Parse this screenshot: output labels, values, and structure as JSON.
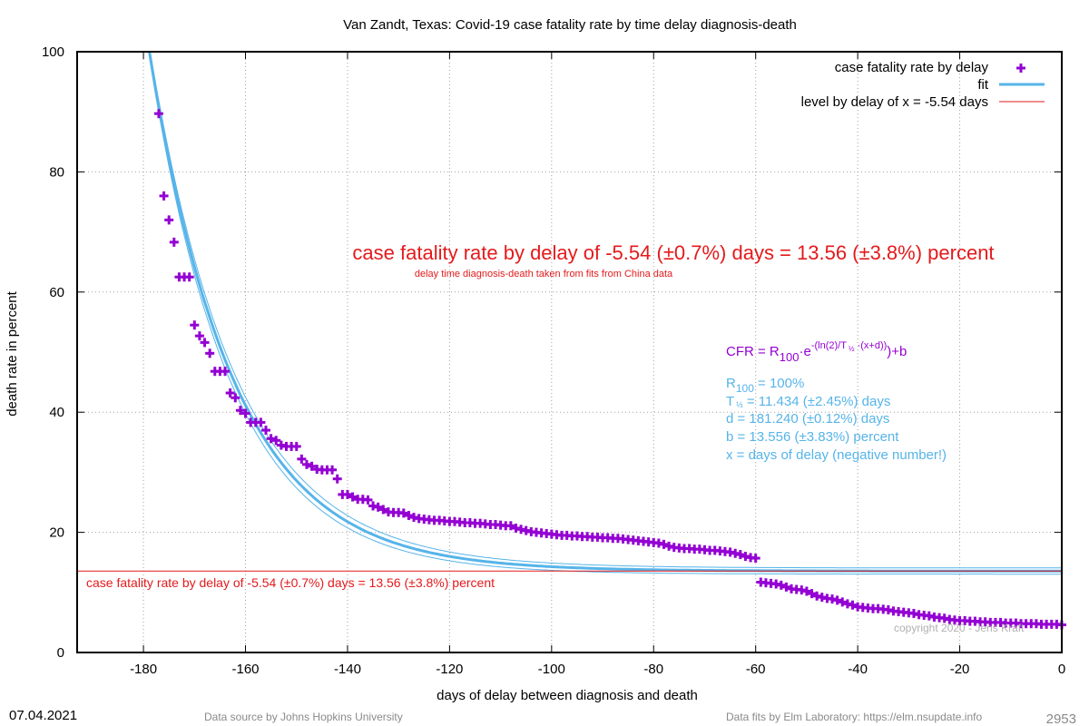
{
  "chart_data": {
    "type": "scatter",
    "title": "Van Zandt,  Texas: Covid-19 case fatality rate by time delay diagnosis-death",
    "xlabel": "days of delay between diagnosis and death",
    "ylabel": "death rate in percent",
    "xlim": [
      -193,
      0
    ],
    "ylim": [
      0,
      100
    ],
    "xticks": [
      -180,
      -160,
      -140,
      -120,
      -100,
      -80,
      -60,
      -40,
      -20,
      0
    ],
    "yticks": [
      0,
      20,
      40,
      60,
      80,
      100
    ],
    "x_tick_labels": [
      "-180",
      "-160",
      "-140",
      "-120",
      "-100",
      "-80",
      "-60",
      "-40",
      "-20",
      "0"
    ],
    "y_tick_labels": [
      "0",
      "20",
      "40",
      "60",
      "80",
      "100"
    ],
    "grid": true,
    "legend_position": "top-right",
    "legend": [
      {
        "label": "case fatality rate by delay",
        "kind": "marker",
        "color": "#9400d3"
      },
      {
        "label": "fit",
        "kind": "line",
        "color": "#56b4e9"
      },
      {
        "label": "level by delay of x = -5.54 days",
        "kind": "line",
        "color": "#e41a1c"
      }
    ],
    "series": [
      {
        "name": "case fatality rate by delay",
        "color": "#9400d3",
        "points": [
          [
            -177,
            89.7
          ],
          [
            -176,
            76.0
          ],
          [
            -175,
            72.0
          ],
          [
            -174,
            68.3
          ],
          [
            -173,
            62.5
          ],
          [
            -172,
            62.5
          ],
          [
            -171,
            62.5
          ],
          [
            -170,
            54.5
          ],
          [
            -169,
            52.7
          ],
          [
            -168,
            51.6
          ],
          [
            -167,
            49.8
          ],
          [
            -166,
            46.8
          ],
          [
            -165,
            46.8
          ],
          [
            -164,
            46.8
          ],
          [
            -163,
            43.2
          ],
          [
            -162,
            42.4
          ],
          [
            -161,
            40.3
          ],
          [
            -160,
            39.8
          ],
          [
            -159,
            38.3
          ],
          [
            -158,
            38.3
          ],
          [
            -157,
            38.3
          ],
          [
            -156,
            37.0
          ],
          [
            -155,
            35.6
          ],
          [
            -154,
            35.3
          ],
          [
            -153,
            34.5
          ],
          [
            -152,
            34.3
          ],
          [
            -151,
            34.3
          ],
          [
            -150,
            34.3
          ],
          [
            -149,
            32.2
          ],
          [
            -148,
            31.3
          ],
          [
            -147,
            31.0
          ],
          [
            -146,
            30.5
          ],
          [
            -145,
            30.4
          ],
          [
            -144,
            30.4
          ],
          [
            -143,
            30.4
          ],
          [
            -142,
            28.9
          ],
          [
            -141,
            26.3
          ],
          [
            -140,
            26.3
          ],
          [
            -139,
            25.9
          ],
          [
            -138,
            25.5
          ],
          [
            -137,
            25.5
          ],
          [
            -136,
            25.4
          ],
          [
            -135,
            24.4
          ],
          [
            -134,
            24.2
          ],
          [
            -133,
            23.8
          ],
          [
            -132,
            23.4
          ],
          [
            -131,
            23.3
          ],
          [
            -130,
            23.3
          ],
          [
            -129,
            23.2
          ],
          [
            -128,
            22.8
          ],
          [
            -127,
            22.5
          ],
          [
            -126,
            22.3
          ],
          [
            -125,
            22.2
          ],
          [
            -124,
            22.1
          ],
          [
            -123,
            22.0
          ],
          [
            -122,
            22.0
          ],
          [
            -121,
            21.9
          ],
          [
            -120,
            21.8
          ],
          [
            -119,
            21.8
          ],
          [
            -118,
            21.7
          ],
          [
            -117,
            21.6
          ],
          [
            -116,
            21.6
          ],
          [
            -115,
            21.5
          ],
          [
            -114,
            21.5
          ],
          [
            -113,
            21.4
          ],
          [
            -112,
            21.3
          ],
          [
            -111,
            21.3
          ],
          [
            -110,
            21.2
          ],
          [
            -109,
            21.1
          ],
          [
            -108,
            21.1
          ],
          [
            -107,
            20.7
          ],
          [
            -106,
            20.5
          ],
          [
            -105,
            20.3
          ],
          [
            -104,
            20.1
          ],
          [
            -103,
            20.0
          ],
          [
            -102,
            19.9
          ],
          [
            -101,
            19.8
          ],
          [
            -100,
            19.7
          ],
          [
            -99,
            19.6
          ],
          [
            -98,
            19.5
          ],
          [
            -97,
            19.5
          ],
          [
            -96,
            19.4
          ],
          [
            -95,
            19.4
          ],
          [
            -94,
            19.3
          ],
          [
            -93,
            19.3
          ],
          [
            -92,
            19.2
          ],
          [
            -91,
            19.2
          ],
          [
            -90,
            19.1
          ],
          [
            -89,
            19.1
          ],
          [
            -88,
            19.0
          ],
          [
            -87,
            19.0
          ],
          [
            -86,
            18.9
          ],
          [
            -85,
            18.8
          ],
          [
            -84,
            18.7
          ],
          [
            -83,
            18.6
          ],
          [
            -82,
            18.5
          ],
          [
            -81,
            18.4
          ],
          [
            -80,
            18.3
          ],
          [
            -79,
            18.2
          ],
          [
            -78,
            18.0
          ],
          [
            -77,
            17.7
          ],
          [
            -76,
            17.5
          ],
          [
            -75,
            17.4
          ],
          [
            -74,
            17.3
          ],
          [
            -73,
            17.3
          ],
          [
            -72,
            17.2
          ],
          [
            -71,
            17.2
          ],
          [
            -70,
            17.1
          ],
          [
            -69,
            17.0
          ],
          [
            -68,
            17.0
          ],
          [
            -67,
            16.9
          ],
          [
            -66,
            16.8
          ],
          [
            -65,
            16.7
          ],
          [
            -64,
            16.5
          ],
          [
            -63,
            16.3
          ],
          [
            -62,
            16.0
          ],
          [
            -61,
            15.8
          ],
          [
            -60,
            15.7
          ],
          [
            -59,
            11.7
          ],
          [
            -58,
            11.6
          ],
          [
            -57,
            11.5
          ],
          [
            -56,
            11.4
          ],
          [
            -55,
            11.2
          ],
          [
            -54,
            10.9
          ],
          [
            -53,
            10.6
          ],
          [
            -52,
            10.5
          ],
          [
            -51,
            10.4
          ],
          [
            -50,
            10.2
          ],
          [
            -49,
            9.8
          ],
          [
            -48,
            9.4
          ],
          [
            -47,
            9.2
          ],
          [
            -46,
            9.0
          ],
          [
            -45,
            8.9
          ],
          [
            -44,
            8.7
          ],
          [
            -43,
            8.4
          ],
          [
            -42,
            8.1
          ],
          [
            -41,
            7.9
          ],
          [
            -40,
            7.6
          ],
          [
            -39,
            7.5
          ],
          [
            -38,
            7.4
          ],
          [
            -37,
            7.3
          ],
          [
            -36,
            7.3
          ],
          [
            -35,
            7.2
          ],
          [
            -34,
            7.1
          ],
          [
            -33,
            6.9
          ],
          [
            -32,
            6.8
          ],
          [
            -31,
            6.7
          ],
          [
            -30,
            6.6
          ],
          [
            -29,
            6.5
          ],
          [
            -28,
            6.3
          ],
          [
            -27,
            6.2
          ],
          [
            -26,
            6.1
          ],
          [
            -25,
            5.9
          ],
          [
            -24,
            5.8
          ],
          [
            -23,
            5.7
          ],
          [
            -22,
            5.5
          ],
          [
            -21,
            5.4
          ],
          [
            -20,
            5.3
          ],
          [
            -19,
            5.3
          ],
          [
            -18,
            5.2
          ],
          [
            -17,
            5.2
          ],
          [
            -16,
            5.1
          ],
          [
            -15,
            5.1
          ],
          [
            -14,
            5.0
          ],
          [
            -13,
            5.0
          ],
          [
            -12,
            5.0
          ],
          [
            -11,
            4.9
          ],
          [
            -10,
            4.9
          ],
          [
            -9,
            4.9
          ],
          [
            -8,
            4.8
          ],
          [
            -7,
            4.8
          ],
          [
            -6,
            4.8
          ],
          [
            -5,
            4.8
          ],
          [
            -4,
            4.7
          ],
          [
            -3,
            4.7
          ],
          [
            -2,
            4.7
          ],
          [
            -1,
            4.7
          ],
          [
            0,
            4.6
          ]
        ]
      }
    ],
    "fit": {
      "name": "fit",
      "color": "#56b4e9",
      "R100": 100,
      "T_half": 11.434,
      "d": 181.24,
      "b": 13.556,
      "band_rel": 0.0245,
      "x_range": [
        -193,
        0
      ]
    },
    "level_line": {
      "name": "level by delay of x = -5.54 days",
      "y": 13.56,
      "color": "#e41a1c"
    }
  },
  "annotations": {
    "headline": "case fatality rate by delay of -5.54 (±0.7%) days = 13.56 (±3.8%) percent",
    "subline": "delay time diagnosis-death taken from fits from China data",
    "level_label": "case fatality rate by delay of -5.54 (±0.7%) days = 13.56 (±3.8%) percent",
    "formula_prefix": "CFR = R",
    "formula_sub100": "100",
    "formula_mid": "·e",
    "formula_exp_a": "-(ln(2)/T",
    "formula_exp_half": "½",
    "formula_exp_b": "·(x+d))",
    "formula_suffix": ")+b",
    "param_r_prefix": "R",
    "param_r_sub": "100",
    "param_r_value": " = 100%",
    "param_t_prefix": "T",
    "param_t_sub": "½",
    "param_t_value": " = 11.434 (±2.45%) days",
    "param_d": "d = 181.240 (±0.12%) days",
    "param_b": "b = 13.556 (±3.83%) percent",
    "param_x": "x = days of delay (negative number!)",
    "copyright": "copyright 2020 - Jens Kraft"
  },
  "footer": {
    "date": "07.04.2021",
    "source": "Data source by Johns Hopkins University",
    "fits": "Data fits by Elm Laboratory: https://elm.nsupdate.info",
    "id": "2953"
  }
}
